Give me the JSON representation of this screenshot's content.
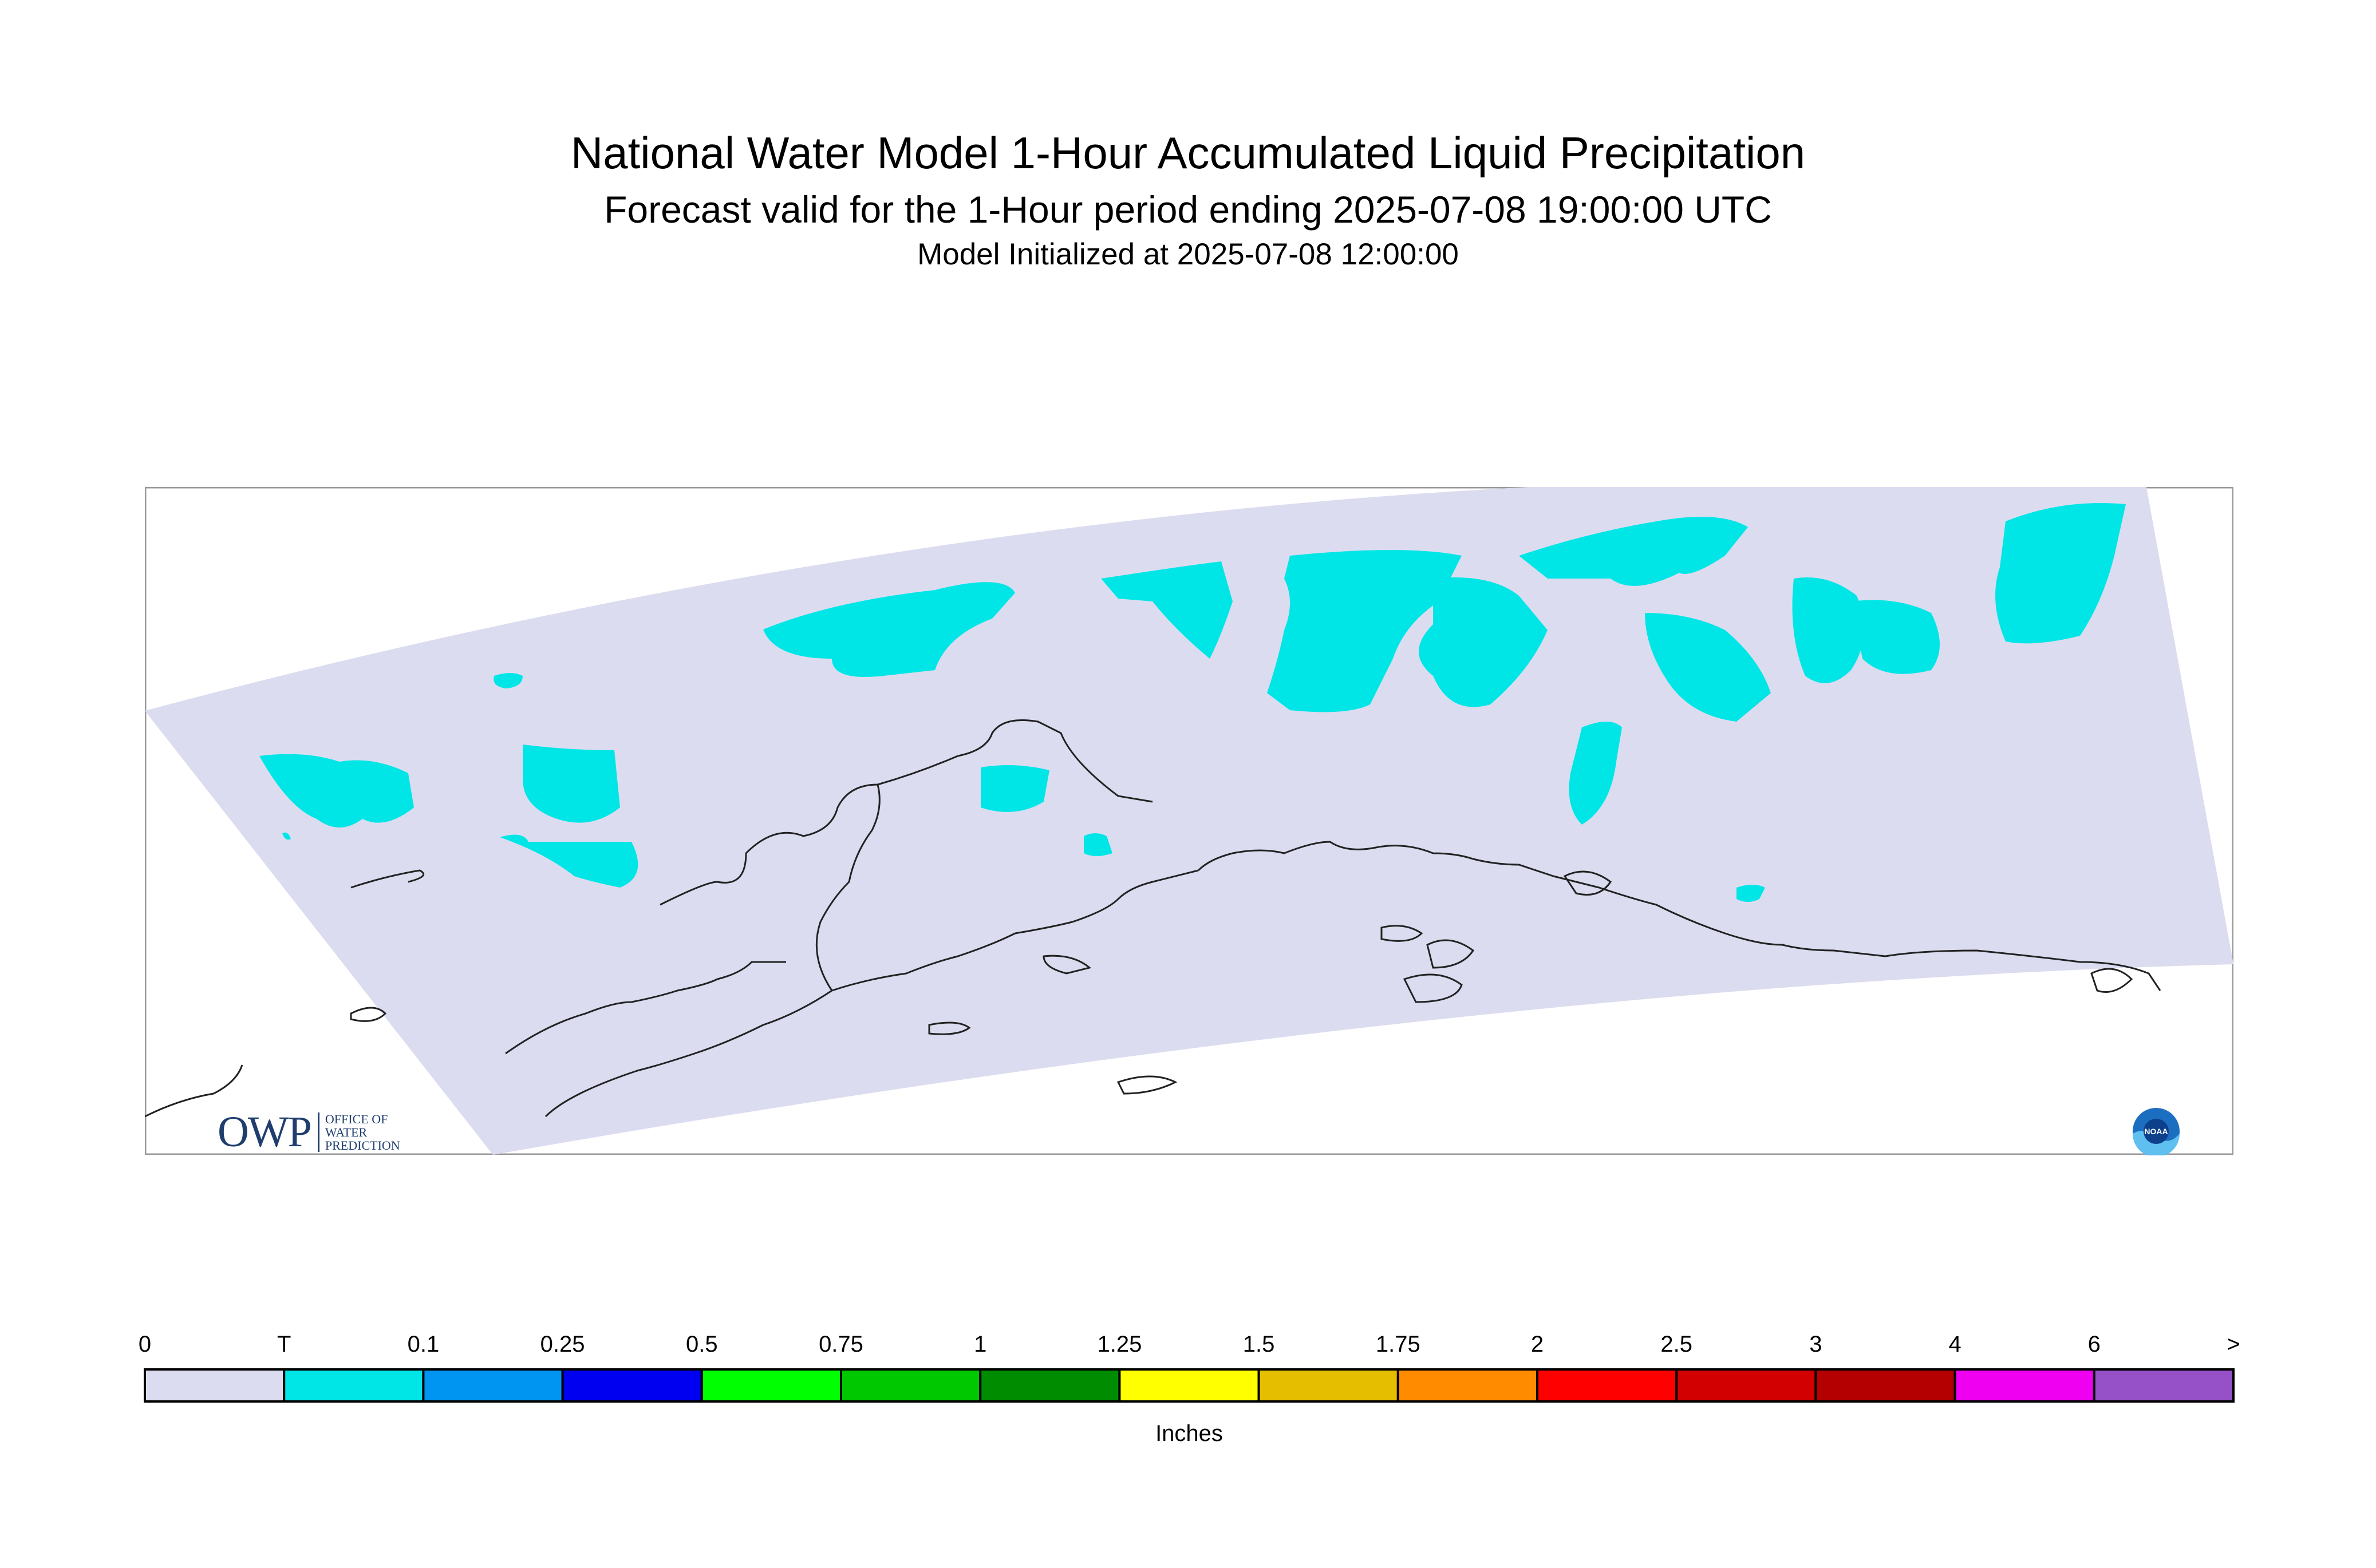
{
  "header": {
    "title": "National Water Model 1-Hour Accumulated Liquid Precipitation",
    "subtitle": "Forecast valid for the 1-Hour period ending 2025-07-08 19:00:00 UTC",
    "init_line": "Model Initialized at 2025-07-08 12:00:00"
  },
  "map": {
    "region": "Alaska",
    "background_color": "#dcdcf0",
    "trace_color": "#00e6e6",
    "coastline_color": "#222222"
  },
  "logos": {
    "owp_mark": "OWP",
    "owp_lines": [
      "OFFICE OF",
      "WATER",
      "PREDICTION"
    ],
    "noaa_text": "NOAA"
  },
  "legend": {
    "tick_labels": [
      "0",
      "T",
      "0.1",
      "0.25",
      "0.5",
      "0.75",
      "1",
      "1.25",
      "1.5",
      "1.75",
      "2",
      "2.5",
      "3",
      "4",
      "6",
      ">"
    ],
    "colors": [
      "#dcdcf0",
      "#00e6e6",
      "#0095f0",
      "#0000f0",
      "#00ff00",
      "#00c800",
      "#008c00",
      "#ffff00",
      "#e6be00",
      "#ff8c00",
      "#ff0000",
      "#d20000",
      "#b40000",
      "#f000f0",
      "#9650c8"
    ],
    "units_label": "Inches"
  }
}
